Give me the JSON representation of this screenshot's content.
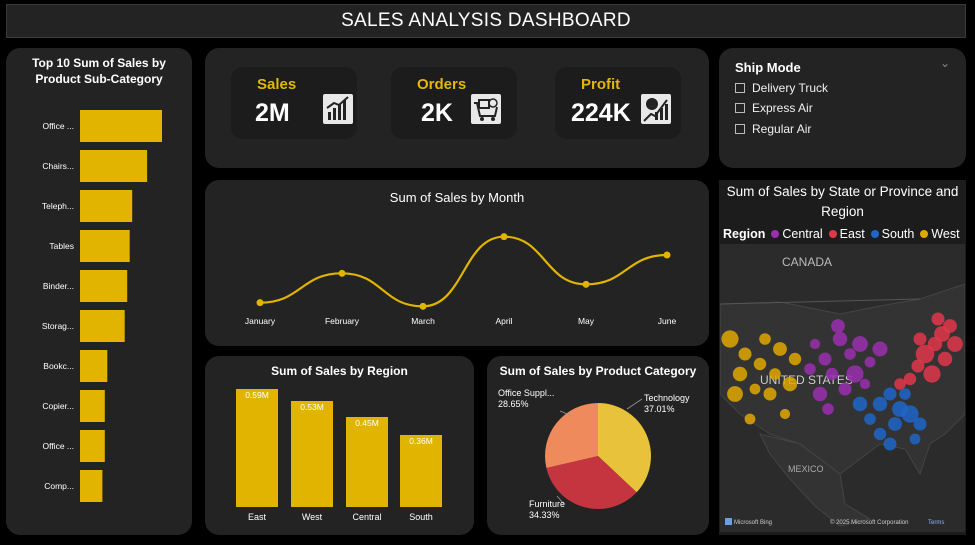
{
  "header": {
    "title": "SALES ANALYSIS DASHBOARD"
  },
  "kpis": [
    {
      "label": "Sales",
      "value": "2M",
      "icon": "growth-chart-icon"
    },
    {
      "label": "Orders",
      "value": "2K",
      "icon": "shopping-cart-icon"
    },
    {
      "label": "Profit",
      "value": "224K",
      "icon": "money-bag-icon"
    }
  ],
  "filter": {
    "title": "Ship Mode",
    "options": [
      "Delivery Truck",
      "Express Air",
      "Regular Air"
    ]
  },
  "map": {
    "title": "Sum of Sales by State or Province and Region",
    "legend_title": "Region",
    "labels": {
      "canada": "CANADA",
      "us": "UNITED STATES",
      "mexico": "MEXICO"
    },
    "attribution": "Microsoft Bing",
    "copyright": "© 2025 Microsoft Corporation",
    "terms": "Terms"
  },
  "colors": {
    "accent": "#e4b60b",
    "bar": "#e0b400",
    "central": "#9b2fb0",
    "east": "#e0374b",
    "south": "#1f66c9",
    "west": "#e0a800",
    "pie_technology": "#e8c23a",
    "pie_furniture": "#c4353f",
    "pie_office": "#ee8a5b"
  },
  "chart_data": [
    {
      "type": "bar",
      "orientation": "horizontal",
      "title": "Top 10 Sum of Sales by Product Sub-Category",
      "categories": [
        "Office ...",
        "Chairs...",
        "Teleph...",
        "Tables",
        "Binder...",
        "Storag...",
        "Bookc...",
        "Copier...",
        "Office ...",
        "Comp..."
      ],
      "values": [
        0.33,
        0.27,
        0.21,
        0.2,
        0.19,
        0.18,
        0.11,
        0.1,
        0.1,
        0.09
      ]
    },
    {
      "type": "line",
      "title": "Sum of Sales by Month",
      "categories": [
        "January",
        "February",
        "March",
        "April",
        "May",
        "June"
      ],
      "values": [
        0.28,
        0.36,
        0.27,
        0.46,
        0.33,
        0.41
      ],
      "ylim": [
        0.2,
        0.5
      ]
    },
    {
      "type": "bar",
      "title": "Sum of Sales by Region",
      "categories": [
        "East",
        "West",
        "Central",
        "South"
      ],
      "values": [
        0.59,
        0.53,
        0.45,
        0.36
      ],
      "labels": [
        "0.59M",
        "0.53M",
        "0.45M",
        "0.36M"
      ],
      "ylim": [
        0,
        0.59
      ]
    },
    {
      "type": "pie",
      "title": "Sum of Sales by Product Category",
      "categories": [
        "Technology",
        "Furniture",
        "Office Suppl..."
      ],
      "values": [
        37.01,
        34.33,
        28.65
      ],
      "labels": [
        "37.01%",
        "34.33%",
        "28.65%"
      ]
    },
    {
      "type": "scatter",
      "title": "Sum of Sales by State or Province and Region",
      "series": [
        {
          "name": "Central",
          "values": [
            0.3,
            0.5,
            0.6,
            0.4,
            0.7,
            0.35,
            0.45,
            0.8,
            0.5,
            0.6,
            0.4,
            0.3,
            0.55,
            0.65,
            0.4
          ]
        },
        {
          "name": "East",
          "values": [
            0.9,
            0.6,
            0.7,
            0.5,
            0.8,
            0.55,
            0.45,
            0.6,
            0.5,
            0.7,
            0.4,
            0.5
          ]
        },
        {
          "name": "South",
          "values": [
            0.6,
            0.5,
            0.7,
            0.4,
            0.55,
            0.8,
            0.45,
            0.5,
            0.6,
            0.4,
            0.5,
            0.35
          ]
        },
        {
          "name": "West",
          "values": [
            0.8,
            0.5,
            0.6,
            0.45,
            0.7,
            0.35,
            0.55,
            0.4,
            0.5,
            0.6,
            0.4,
            0.3,
            0.35,
            0.45
          ]
        }
      ]
    }
  ]
}
